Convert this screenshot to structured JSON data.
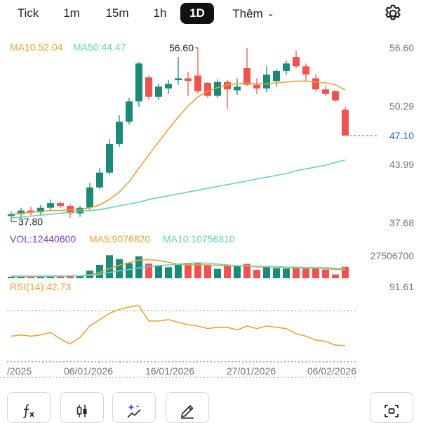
{
  "timeframe_tabs": [
    {
      "label": "Tick"
    },
    {
      "label": "1m"
    },
    {
      "label": "15m"
    },
    {
      "label": "1h"
    },
    {
      "label": "1D",
      "active": true
    },
    {
      "label": "Thêm"
    }
  ],
  "icons": {
    "settings": "gear-icon",
    "more": "chevron-down-icon",
    "indicator": "function-fx-icon",
    "candle_type": "candlestick-icon",
    "magic": "sparkle-chart-icon",
    "draw": "pencil-icon",
    "screenshot": "capture-frame-icon"
  },
  "colors": {
    "up": "#1b8a7a",
    "down": "#ef5350",
    "ma10": "#e3a53b",
    "ma50": "#63d1b8",
    "rsi": "#e3a53b",
    "last_price": "#2a6db3"
  },
  "price_panel": {
    "ma10_label": "MA10:52.04",
    "ma50_label": "MA50:44.47",
    "high_label": "56.60",
    "low_label": "37.80",
    "last_price_label": "47.10",
    "axis_labels": [
      "56.60",
      "50.29",
      "43.99",
      "37.68"
    ]
  },
  "volume_panel": {
    "vol_label": "VOL:12440600",
    "ma5_label": "MA5:9076820",
    "ma10_label": "MA10:10756810",
    "axis_label": "27506700"
  },
  "rsi_panel": {
    "label": "RSI(14):42.73",
    "axis_label": "91.61"
  },
  "date_labels": [
    "/2025",
    "06/01/2026",
    "16/01/2026",
    "27/01/2026",
    "06/02/2026"
  ],
  "chart_data": {
    "type": "candlestick",
    "y_range": [
      37.68,
      56.6
    ],
    "last_price": 47.1,
    "candles": [
      {
        "o": 38.4,
        "h": 38.9,
        "l": 37.8,
        "c": 38.6
      },
      {
        "o": 38.6,
        "h": 39.3,
        "l": 38.2,
        "c": 39.0
      },
      {
        "o": 39.0,
        "h": 39.4,
        "l": 38.5,
        "c": 38.8
      },
      {
        "o": 38.8,
        "h": 39.6,
        "l": 38.4,
        "c": 39.3
      },
      {
        "o": 39.3,
        "h": 40.2,
        "l": 39.0,
        "c": 39.8
      },
      {
        "o": 39.8,
        "h": 40.0,
        "l": 39.3,
        "c": 39.5
      },
      {
        "o": 39.5,
        "h": 39.7,
        "l": 38.2,
        "c": 38.7
      },
      {
        "o": 38.7,
        "h": 39.5,
        "l": 38.3,
        "c": 39.3
      },
      {
        "o": 39.3,
        "h": 42.0,
        "l": 39.1,
        "c": 41.5
      },
      {
        "o": 41.5,
        "h": 43.6,
        "l": 41.3,
        "c": 43.1
      },
      {
        "o": 43.1,
        "h": 46.7,
        "l": 42.9,
        "c": 46.2
      },
      {
        "o": 46.2,
        "h": 49.3,
        "l": 45.9,
        "c": 48.6
      },
      {
        "o": 48.6,
        "h": 51.2,
        "l": 48.3,
        "c": 50.8
      },
      {
        "o": 50.8,
        "h": 55.1,
        "l": 50.2,
        "c": 54.9
      },
      {
        "o": 53.4,
        "h": 53.6,
        "l": 51.0,
        "c": 51.3
      },
      {
        "o": 51.3,
        "h": 52.7,
        "l": 51.0,
        "c": 52.4
      },
      {
        "o": 52.2,
        "h": 53.1,
        "l": 51.6,
        "c": 52.7
      },
      {
        "o": 53.1,
        "h": 55.6,
        "l": 52.6,
        "c": 53.3
      },
      {
        "o": 53.3,
        "h": 54.0,
        "l": 51.4,
        "c": 53.0
      },
      {
        "o": 53.6,
        "h": 56.6,
        "l": 51.7,
        "c": 51.9
      },
      {
        "o": 52.8,
        "h": 52.9,
        "l": 51.2,
        "c": 51.4
      },
      {
        "o": 51.4,
        "h": 53.2,
        "l": 51.2,
        "c": 52.9
      },
      {
        "o": 52.9,
        "h": 53.1,
        "l": 50.0,
        "c": 52.1
      },
      {
        "o": 52.0,
        "h": 53.3,
        "l": 51.5,
        "c": 52.4
      },
      {
        "o": 54.4,
        "h": 56.6,
        "l": 52.5,
        "c": 52.6
      },
      {
        "o": 52.6,
        "h": 53.3,
        "l": 51.6,
        "c": 52.2
      },
      {
        "o": 52.2,
        "h": 54.6,
        "l": 51.8,
        "c": 53.7
      },
      {
        "o": 53.0,
        "h": 54.3,
        "l": 52.4,
        "c": 54.1
      },
      {
        "o": 54.1,
        "h": 55.2,
        "l": 53.7,
        "c": 54.9
      },
      {
        "o": 55.6,
        "h": 56.3,
        "l": 54.4,
        "c": 54.6
      },
      {
        "o": 54.6,
        "h": 54.9,
        "l": 53.0,
        "c": 53.7
      },
      {
        "o": 53.3,
        "h": 53.7,
        "l": 51.9,
        "c": 52.1
      },
      {
        "o": 52.1,
        "h": 52.5,
        "l": 51.4,
        "c": 51.6
      },
      {
        "o": 51.9,
        "h": 52.0,
        "l": 50.8,
        "c": 50.9
      },
      {
        "o": 49.9,
        "h": 50.2,
        "l": 47.1,
        "c": 47.1
      }
    ],
    "ma10": [
      38.6,
      38.7,
      38.8,
      38.9,
      39.0,
      39.0,
      39.1,
      39.1,
      39.3,
      39.6,
      40.2,
      41.0,
      42.1,
      43.6,
      45.0,
      46.4,
      47.8,
      49.1,
      50.3,
      51.3,
      51.9,
      52.3,
      52.6,
      52.7,
      52.8,
      52.7,
      52.7,
      52.8,
      52.9,
      53.0,
      53.0,
      52.9,
      52.8,
      52.6,
      52.04
    ],
    "ma50": [
      38.2,
      38.3,
      38.4,
      38.5,
      38.6,
      38.7,
      38.8,
      38.9,
      39.0,
      39.1,
      39.3,
      39.5,
      39.7,
      39.9,
      40.2,
      40.4,
      40.6,
      40.8,
      41.0,
      41.2,
      41.4,
      41.6,
      41.8,
      42.0,
      42.2,
      42.4,
      42.6,
      42.8,
      43.0,
      43.3,
      43.5,
      43.7,
      43.9,
      44.2,
      44.47
    ],
    "volume": [
      1600000,
      2300000,
      2000000,
      1900000,
      2900000,
      3100000,
      2500000,
      2700000,
      8200000,
      14600000,
      25000000,
      20800000,
      16400000,
      23900000,
      16000000,
      13800000,
      12000000,
      14500000,
      16800000,
      16200000,
      14300000,
      10300000,
      13600000,
      13000000,
      15700000,
      9100000,
      12000000,
      11000000,
      10500000,
      11200000,
      10300000,
      10800000,
      9500000,
      4100000,
      12440600
    ],
    "volume_max": 27506700,
    "volume_ma5": [
      2000000,
      2000000,
      2000000,
      2100000,
      2200000,
      2400000,
      2500000,
      2700000,
      3900000,
      6200000,
      10600000,
      14200000,
      16900000,
      19800000,
      20200000,
      19300000,
      17500000,
      15100000,
      14600000,
      14600000,
      14600000,
      13900000,
      13600000,
      13500000,
      13600000,
      12300000,
      12400000,
      12100000,
      11700000,
      11000000,
      11000000,
      10900000,
      10600000,
      9500000,
      9076820
    ],
    "volume_ma10": [
      2400000,
      2400000,
      2400000,
      2400000,
      2400000,
      2400000,
      2500000,
      2600000,
      3100000,
      4300000,
      6300000,
      8100000,
      9600000,
      11400000,
      12700000,
      13700000,
      14500000,
      15400000,
      16100000,
      16900000,
      16400000,
      15400000,
      14500000,
      13400000,
      13400000,
      13000000,
      12800000,
      12500000,
      12100000,
      12000000,
      11600000,
      11500000,
      11400000,
      10800000,
      10756810
    ],
    "rsi": [
      50,
      51,
      50,
      51,
      53,
      48,
      44,
      49,
      58,
      63,
      68,
      71,
      73,
      74,
      62,
      62,
      63,
      61,
      59,
      58,
      56,
      57,
      57,
      55,
      58,
      56,
      58,
      57,
      56,
      52,
      50,
      47,
      46,
      43,
      42.73
    ],
    "rsi_range": [
      20,
      91.61
    ],
    "rsi_levels": [
      70,
      30
    ]
  }
}
